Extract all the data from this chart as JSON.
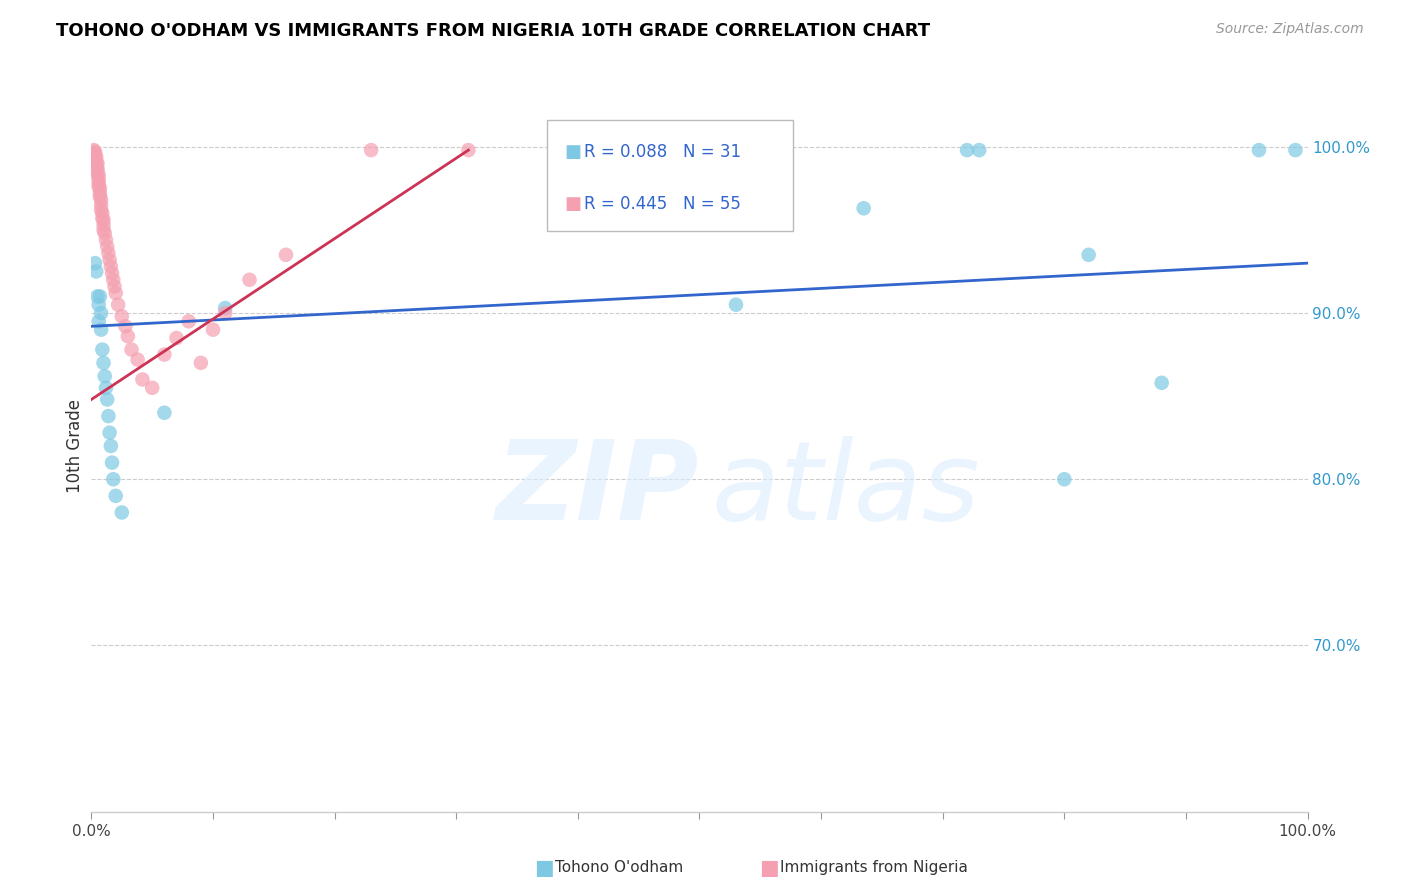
{
  "title": "TOHONO O'ODHAM VS IMMIGRANTS FROM NIGERIA 10TH GRADE CORRELATION CHART",
  "source": "Source: ZipAtlas.com",
  "ylabel": "10th Grade",
  "legend_blue_r": "R = 0.088",
  "legend_blue_n": "N = 31",
  "legend_pink_r": "R = 0.445",
  "legend_pink_n": "N = 55",
  "legend_label_blue": "Tohono O'odham",
  "legend_label_pink": "Immigrants from Nigeria",
  "blue_color": "#7ec8e3",
  "pink_color": "#f4a0b0",
  "blue_line_color": "#3366cc",
  "pink_line_color": "#cc3355",
  "xlim": [
    0.0,
    1.0
  ],
  "ylim": [
    0.6,
    1.04
  ],
  "xticks": [
    0.0,
    0.1,
    0.2,
    0.3,
    0.4,
    0.5,
    0.6,
    0.7,
    0.8,
    0.9,
    1.0
  ],
  "xticklabels": [
    "0.0%",
    "",
    "",
    "",
    "",
    "",
    "",
    "",
    "",
    "",
    "100.0%"
  ],
  "ytick_positions": [
    0.7,
    0.8,
    0.9,
    1.0
  ],
  "ytick_labels": [
    "70.0%",
    "80.0%",
    "90.0%",
    "100.0%"
  ],
  "grid_color": "#cccccc",
  "blue_x": [
    0.003,
    0.004,
    0.005,
    0.006,
    0.006,
    0.007,
    0.008,
    0.008,
    0.009,
    0.01,
    0.011,
    0.012,
    0.013,
    0.014,
    0.015,
    0.016,
    0.017,
    0.018,
    0.02,
    0.025,
    0.06,
    0.11,
    0.53,
    0.635,
    0.72,
    0.73,
    0.8,
    0.82,
    0.88,
    0.96,
    0.99
  ],
  "blue_y": [
    0.93,
    0.925,
    0.91,
    0.905,
    0.895,
    0.91,
    0.9,
    0.89,
    0.878,
    0.87,
    0.862,
    0.855,
    0.848,
    0.838,
    0.828,
    0.82,
    0.81,
    0.8,
    0.79,
    0.78,
    0.84,
    0.903,
    0.905,
    0.963,
    0.998,
    0.998,
    0.8,
    0.935,
    0.858,
    0.998,
    0.998
  ],
  "pink_x": [
    0.002,
    0.002,
    0.003,
    0.003,
    0.003,
    0.004,
    0.004,
    0.004,
    0.005,
    0.005,
    0.005,
    0.005,
    0.006,
    0.006,
    0.006,
    0.006,
    0.007,
    0.007,
    0.007,
    0.008,
    0.008,
    0.008,
    0.009,
    0.009,
    0.01,
    0.01,
    0.01,
    0.011,
    0.012,
    0.013,
    0.014,
    0.015,
    0.016,
    0.017,
    0.018,
    0.019,
    0.02,
    0.022,
    0.025,
    0.028,
    0.03,
    0.033,
    0.038,
    0.042,
    0.05,
    0.06,
    0.07,
    0.08,
    0.09,
    0.1,
    0.11,
    0.13,
    0.16,
    0.23,
    0.31
  ],
  "pink_y": [
    0.998,
    0.996,
    0.997,
    0.995,
    0.993,
    0.994,
    0.991,
    0.989,
    0.99,
    0.987,
    0.985,
    0.983,
    0.983,
    0.98,
    0.978,
    0.976,
    0.975,
    0.972,
    0.97,
    0.968,
    0.965,
    0.962,
    0.96,
    0.957,
    0.956,
    0.953,
    0.95,
    0.948,
    0.944,
    0.94,
    0.936,
    0.932,
    0.928,
    0.924,
    0.92,
    0.916,
    0.912,
    0.905,
    0.898,
    0.892,
    0.886,
    0.878,
    0.872,
    0.86,
    0.855,
    0.875,
    0.885,
    0.895,
    0.87,
    0.89,
    0.9,
    0.92,
    0.935,
    0.998,
    0.998
  ],
  "blue_trend": [
    0.0,
    1.0,
    0.892,
    0.93
  ],
  "pink_trend": [
    0.0,
    0.31,
    0.848,
    0.998
  ]
}
